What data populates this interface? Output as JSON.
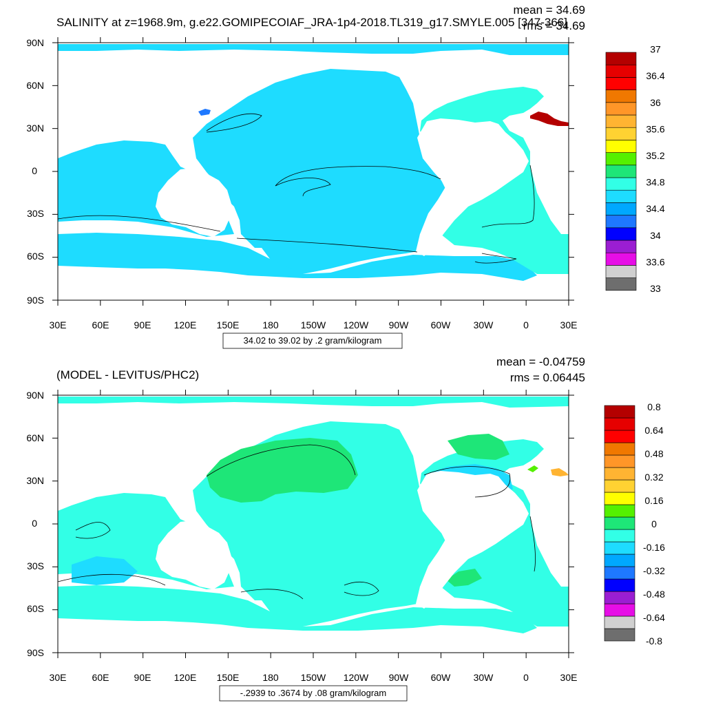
{
  "chart_data": [
    {
      "type": "heatmap",
      "title": "SALINITY at z=1968.9m, g.e22.GOMIPECOIAF_JRA-1p4-2018.TL319_g17.SMYLE.005 [347-366]",
      "mean_label": "mean = 34.69",
      "rms_label": "rms = 34.69",
      "x_ticks": [
        "30E",
        "60E",
        "90E",
        "120E",
        "150E",
        "180",
        "150W",
        "120W",
        "90W",
        "60W",
        "30W",
        "0",
        "30E"
      ],
      "y_ticks": [
        "90N",
        "60N",
        "30N",
        "0",
        "30S",
        "60S",
        "90S"
      ],
      "colorbar": {
        "colors": [
          "#6e6e6e",
          "#d0d0d0",
          "#e60ee6",
          "#9b1ed2",
          "#0000ff",
          "#1e78ff",
          "#00a8ff",
          "#1edcff",
          "#32ffe6",
          "#1ee678",
          "#55f000",
          "#ffff00",
          "#ffd232",
          "#ffb432",
          "#ff9628",
          "#f07800",
          "#ff0000",
          "#e60000",
          "#b40000"
        ],
        "labels": [
          "33",
          "33.6",
          "34",
          "34.4",
          "34.8",
          "35.2",
          "35.6",
          "36",
          "36.4",
          "37"
        ]
      },
      "info_label": "34.02 to 39.02 by .2 gram/kilogram"
    },
    {
      "type": "heatmap",
      "title": "(MODEL - LEVITUS/PHC2)",
      "mean_label": "mean = -0.04759",
      "rms_label": "rms = 0.06445",
      "x_ticks": [
        "30E",
        "60E",
        "90E",
        "120E",
        "150E",
        "180",
        "150W",
        "120W",
        "90W",
        "60W",
        "30W",
        "0",
        "30E"
      ],
      "y_ticks": [
        "90N",
        "60N",
        "30N",
        "0",
        "30S",
        "60S",
        "90S"
      ],
      "colorbar": {
        "colors": [
          "#6e6e6e",
          "#d0d0d0",
          "#e60ee6",
          "#9b1ed2",
          "#0000ff",
          "#1e78ff",
          "#00a8ff",
          "#1edcff",
          "#32ffe6",
          "#1ee678",
          "#55f000",
          "#ffff00",
          "#ffd232",
          "#ffb432",
          "#ff9628",
          "#f07800",
          "#ff0000",
          "#e60000",
          "#b40000"
        ],
        "labels": [
          "-0.8",
          "-0.64",
          "-0.48",
          "-0.32",
          "-0.16",
          "0",
          "0.16",
          "0.32",
          "0.48",
          "0.64",
          "0.8"
        ]
      },
      "info_label": "-.2939 to .3674 by .08 gram/kilogram"
    }
  ],
  "colors": {
    "ocean_main": "#1edcff",
    "ocean_pacific": "#1edcff",
    "atlantic": "#32ffe6",
    "med_hot": "#b40000",
    "diff_ocean": "#32ffe6",
    "diff_green": "#1ee678",
    "diff_blue": "#1edcff"
  }
}
